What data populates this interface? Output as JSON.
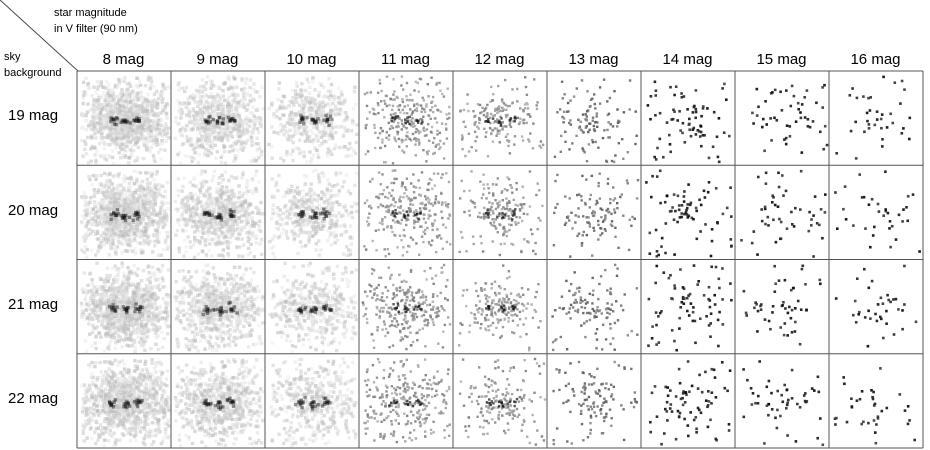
{
  "corner": {
    "column_title_line1": "star magnitude",
    "column_title_line2": "in V filter (90 nm)",
    "row_title_line1": "sky",
    "row_title_line2": "background"
  },
  "columns": [
    "8 mag",
    "9 mag",
    "10 mag",
    "11 mag",
    "12 mag",
    "13 mag",
    "14 mag",
    "15 mag",
    "16 mag"
  ],
  "rows": [
    "19 mag",
    "20 mag",
    "21 mag",
    "22 mag"
  ],
  "colors": {
    "grid_line": "#555555",
    "speckle_dark": "#111111",
    "speckle_light": "#bbbbbb"
  }
}
